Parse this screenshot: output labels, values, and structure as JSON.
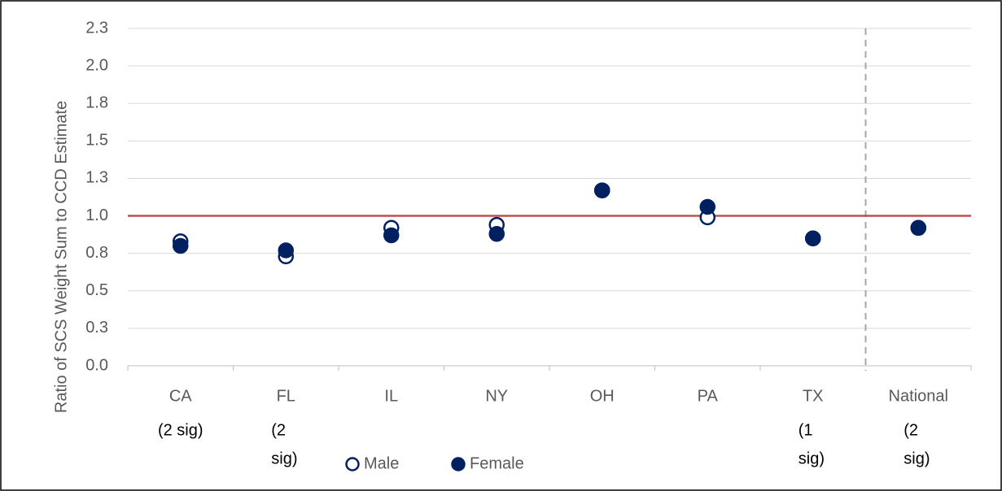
{
  "chart_data": {
    "type": "dot",
    "y_label": "Ratio of SCS Weight Sum to CCD Estimate",
    "categories": [
      "CA",
      "FL",
      "IL",
      "NY",
      "OH",
      "PA",
      "TX",
      "National"
    ],
    "series": [
      {
        "name": "Male",
        "color": "#002060",
        "filled": false,
        "values": [
          0.83,
          0.73,
          0.92,
          0.94,
          1.17,
          0.99,
          0.85,
          0.92
        ]
      },
      {
        "name": "Female",
        "color": "#002060",
        "filled": true,
        "values": [
          0.8,
          0.77,
          0.87,
          0.88,
          1.17,
          1.06,
          0.85,
          0.92
        ]
      }
    ],
    "category_notes": [
      [
        "(2 sig)"
      ],
      [
        "(2",
        "sig)"
      ],
      null,
      null,
      null,
      null,
      [
        "(1",
        "sig)"
      ],
      [
        "(2",
        "sig)"
      ]
    ],
    "reference_line": 1.0,
    "reference_color": "#c0504d",
    "ylim": [
      0,
      2.25
    ],
    "yticks": [
      {
        "value": 0,
        "label": "0.0"
      },
      {
        "value": 0.25,
        "label": "0.3"
      },
      {
        "value": 0.5,
        "label": "0.5"
      },
      {
        "value": 0.75,
        "label": "0.8"
      },
      {
        "value": 1.0,
        "label": "1.0"
      },
      {
        "value": 1.25,
        "label": "1.3"
      },
      {
        "value": 1.5,
        "label": "1.5"
      },
      {
        "value": 1.75,
        "label": "1.8"
      },
      {
        "value": 2.0,
        "label": "2.0"
      },
      {
        "value": 2.25,
        "label": "2.3"
      }
    ],
    "grid": true
  }
}
